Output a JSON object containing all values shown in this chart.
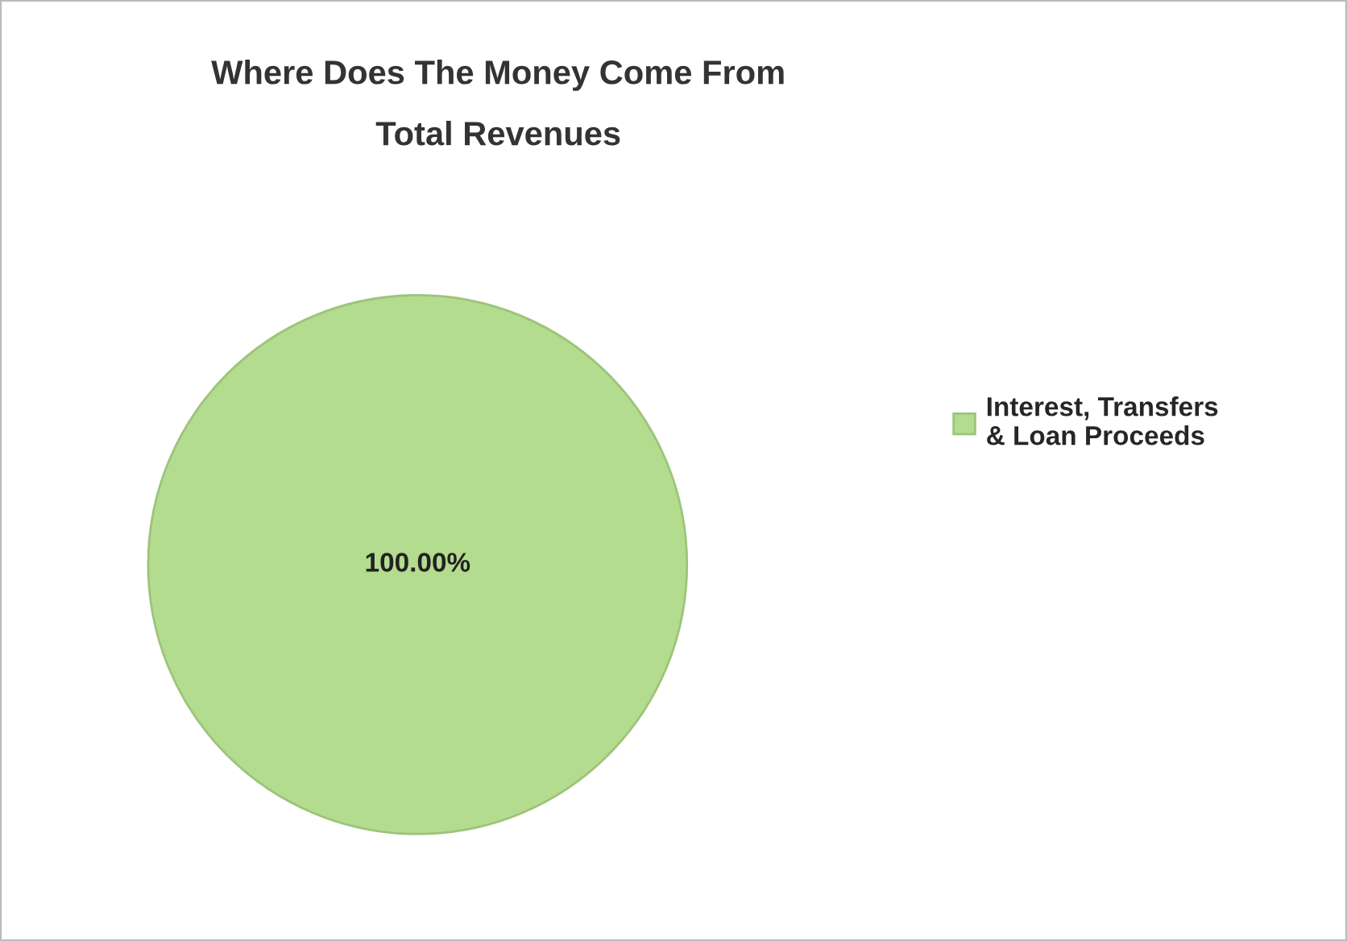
{
  "chart_data": {
    "type": "pie",
    "title": "Where Does The Money Come From",
    "subtitle": "Total Revenues",
    "categories": [
      "Interest, Transfers\n& Loan Proceeds"
    ],
    "values": [
      100
    ],
    "colors": [
      "#b3dc8f"
    ],
    "value_labels": [
      "100.00%"
    ],
    "legend": "right"
  }
}
